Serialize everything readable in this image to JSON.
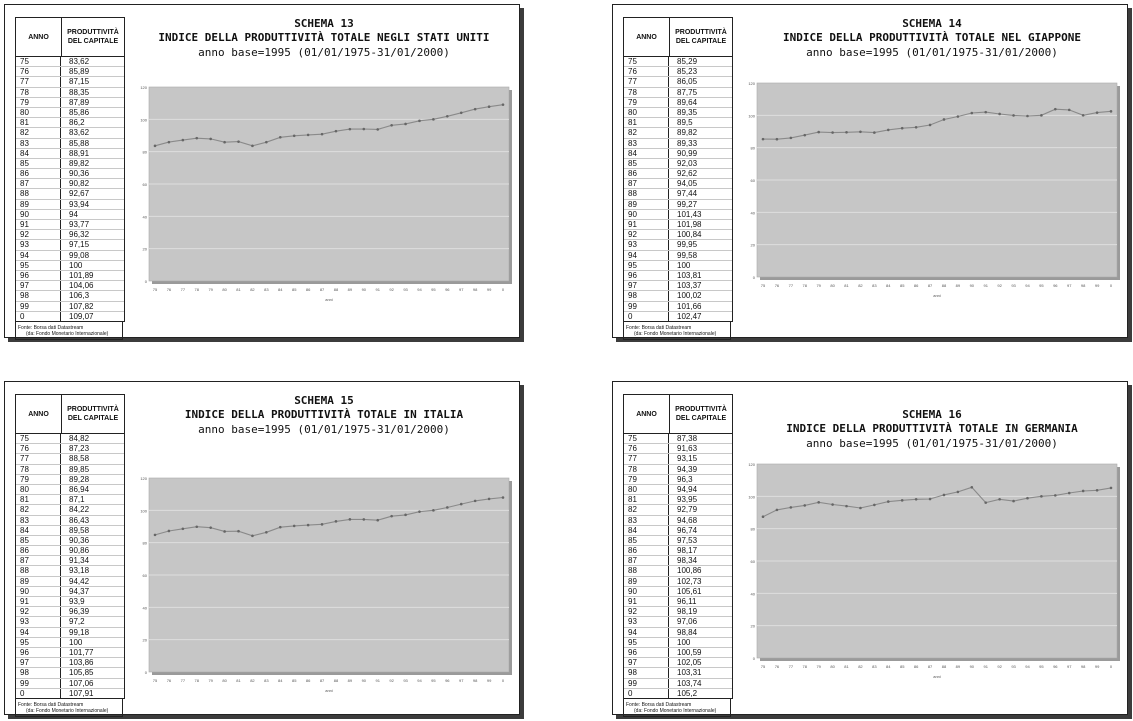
{
  "panels": [
    {
      "schema": "SCHEMA 13",
      "title": "INDICE DELLA PRODUTTIVITÀ TOTALE NEGLI STATI UNITI",
      "subtitle": "anno base=1995 (01/01/1975-31/01/2000)",
      "col_year": "ANNO",
      "col_value": "PRODUTTIVITÀ DEL CAPITALE",
      "source_line1": "Fonte: Borsa dati Datastream",
      "source_line2": "(da: Fondo Monetario Internazionale)",
      "rows": [
        [
          "75",
          "83,62"
        ],
        [
          "76",
          "85,89"
        ],
        [
          "77",
          "87,15"
        ],
        [
          "78",
          "88,35"
        ],
        [
          "79",
          "87,89"
        ],
        [
          "80",
          "85,86"
        ],
        [
          "81",
          "86,2"
        ],
        [
          "82",
          "83,62"
        ],
        [
          "83",
          "85,88"
        ],
        [
          "84",
          "88,91"
        ],
        [
          "85",
          "89,82"
        ],
        [
          "86",
          "90,36"
        ],
        [
          "87",
          "90,82"
        ],
        [
          "88",
          "92,67"
        ],
        [
          "89",
          "93,94"
        ],
        [
          "90",
          "94"
        ],
        [
          "91",
          "93,77"
        ],
        [
          "92",
          "96,32"
        ],
        [
          "93",
          "97,15"
        ],
        [
          "94",
          "99,08"
        ],
        [
          "95",
          "100"
        ],
        [
          "96",
          "101,89"
        ],
        [
          "97",
          "104,06"
        ],
        [
          "98",
          "106,3"
        ],
        [
          "99",
          "107,82"
        ],
        [
          "0",
          "109,07"
        ]
      ]
    },
    {
      "schema": "SCHEMA 14",
      "title": "INDICE DELLA PRODUTTIVITÀ TOTALE NEL GIAPPONE",
      "subtitle": "anno base=1995 (01/01/1975-31/01/2000)",
      "col_year": "ANNO",
      "col_value": "PRODUTTIVITÀ DEL CAPITALE",
      "source_line1": "Fonte: Borsa dati Datastream",
      "source_line2": "(da: Fondo Monetario Internazionale)",
      "rows": [
        [
          "75",
          "85,29"
        ],
        [
          "76",
          "85,23"
        ],
        [
          "77",
          "86,05"
        ],
        [
          "78",
          "87,75"
        ],
        [
          "79",
          "89,64"
        ],
        [
          "80",
          "89,35"
        ],
        [
          "81",
          "89,5"
        ],
        [
          "82",
          "89,82"
        ],
        [
          "83",
          "89,33"
        ],
        [
          "84",
          "90,99"
        ],
        [
          "85",
          "92,03"
        ],
        [
          "86",
          "92,62"
        ],
        [
          "87",
          "94,05"
        ],
        [
          "88",
          "97,44"
        ],
        [
          "89",
          "99,27"
        ],
        [
          "90",
          "101,43"
        ],
        [
          "91",
          "101,98"
        ],
        [
          "92",
          "100,84"
        ],
        [
          "93",
          "99,95"
        ],
        [
          "94",
          "99,58"
        ],
        [
          "95",
          "100"
        ],
        [
          "96",
          "103,81"
        ],
        [
          "97",
          "103,37"
        ],
        [
          "98",
          "100,02"
        ],
        [
          "99",
          "101,66"
        ],
        [
          "0",
          "102,47"
        ]
      ]
    },
    {
      "schema": "SCHEMA 15",
      "title": "INDICE DELLA PRODUTTIVITÀ TOTALE IN ITALIA",
      "subtitle": "anno base=1995 (01/01/1975-31/01/2000)",
      "col_year": "ANNO",
      "col_value": "PRODUTTIVITÀ DEL CAPITALE",
      "source_line1": "Fonte: Borsa dati Datastream",
      "source_line2": "(da: Fondo Monetario Internazionale)",
      "rows": [
        [
          "75",
          "84,82"
        ],
        [
          "76",
          "87,23"
        ],
        [
          "77",
          "88,58"
        ],
        [
          "78",
          "89,85"
        ],
        [
          "79",
          "89,28"
        ],
        [
          "80",
          "86,94"
        ],
        [
          "81",
          "87,1"
        ],
        [
          "82",
          "84,22"
        ],
        [
          "83",
          "86,43"
        ],
        [
          "84",
          "89,58"
        ],
        [
          "85",
          "90,36"
        ],
        [
          "86",
          "90,86"
        ],
        [
          "87",
          "91,34"
        ],
        [
          "88",
          "93,18"
        ],
        [
          "89",
          "94,42"
        ],
        [
          "90",
          "94,37"
        ],
        [
          "91",
          "93,9"
        ],
        [
          "92",
          "96,39"
        ],
        [
          "93",
          "97,2"
        ],
        [
          "94",
          "99,18"
        ],
        [
          "95",
          "100"
        ],
        [
          "96",
          "101,77"
        ],
        [
          "97",
          "103,86"
        ],
        [
          "98",
          "105,85"
        ],
        [
          "99",
          "107,06"
        ],
        [
          "0",
          "107,91"
        ]
      ]
    },
    {
      "schema": "SCHEMA 16",
      "title": "INDICE DELLA PRODUTTIVITÀ TOTALE IN GERMANIA",
      "subtitle": "anno base=1995 (01/01/1975-31/01/2000)",
      "col_year": "ANNO",
      "col_value": "PRODUTTIVITÀ DEL CAPITALE",
      "source_line1": "Fonte: Borsa dati Datastream",
      "source_line2": "(da: Fondo Monetario Internazionale)",
      "rows": [
        [
          "75",
          "87,38"
        ],
        [
          "76",
          "91,63"
        ],
        [
          "77",
          "93,15"
        ],
        [
          "78",
          "94,39"
        ],
        [
          "79",
          "96,3"
        ],
        [
          "80",
          "94,94"
        ],
        [
          "81",
          "93,95"
        ],
        [
          "82",
          "92,79"
        ],
        [
          "83",
          "94,68"
        ],
        [
          "84",
          "96,74"
        ],
        [
          "85",
          "97,53"
        ],
        [
          "86",
          "98,17"
        ],
        [
          "87",
          "98,34"
        ],
        [
          "88",
          "100,86"
        ],
        [
          "89",
          "102,73"
        ],
        [
          "90",
          "105,61"
        ],
        [
          "91",
          "96,11"
        ],
        [
          "92",
          "98,19"
        ],
        [
          "93",
          "97,06"
        ],
        [
          "94",
          "98,84"
        ],
        [
          "95",
          "100"
        ],
        [
          "96",
          "100,59"
        ],
        [
          "97",
          "102,05"
        ],
        [
          "98",
          "103,31"
        ],
        [
          "99",
          "103,74"
        ],
        [
          "0",
          "105,2"
        ]
      ]
    }
  ],
  "chart_data": [
    {
      "type": "line",
      "x": [
        "75",
        "76",
        "77",
        "78",
        "79",
        "80",
        "81",
        "82",
        "83",
        "84",
        "85",
        "86",
        "87",
        "88",
        "89",
        "90",
        "91",
        "92",
        "93",
        "94",
        "95",
        "96",
        "97",
        "98",
        "99",
        "0"
      ],
      "xlabel": "anni",
      "ylabel": "",
      "ylim": [
        0,
        120
      ],
      "yticks": [
        "0",
        "20",
        "40",
        "60",
        "80",
        "100",
        "120"
      ],
      "grid": true,
      "series": [
        {
          "values": [
            83.62,
            85.89,
            87.15,
            88.35,
            87.89,
            85.86,
            86.2,
            83.62,
            85.88,
            88.91,
            89.82,
            90.36,
            90.82,
            92.67,
            93.94,
            94,
            93.77,
            96.32,
            97.15,
            99.08,
            100,
            101.89,
            104.06,
            106.3,
            107.82,
            109.07
          ]
        }
      ],
      "colors": {
        "plot_bg": "#c6c6c6",
        "line": "#8a8a8a",
        "grid": "#dedede"
      }
    },
    {
      "type": "line",
      "x": [
        "75",
        "76",
        "77",
        "78",
        "79",
        "80",
        "81",
        "82",
        "83",
        "84",
        "85",
        "86",
        "87",
        "88",
        "89",
        "90",
        "91",
        "92",
        "93",
        "94",
        "95",
        "96",
        "97",
        "98",
        "99",
        "0"
      ],
      "xlabel": "anni",
      "ylabel": "",
      "ylim": [
        0,
        120
      ],
      "yticks": [
        "0",
        "20",
        "40",
        "60",
        "80",
        "100",
        "120"
      ],
      "grid": true,
      "series": [
        {
          "values": [
            85.29,
            85.23,
            86.05,
            87.75,
            89.64,
            89.35,
            89.5,
            89.82,
            89.33,
            90.99,
            92.03,
            92.62,
            94.05,
            97.44,
            99.27,
            101.43,
            101.98,
            100.84,
            99.95,
            99.58,
            100,
            103.81,
            103.37,
            100.02,
            101.66,
            102.47
          ]
        }
      ],
      "colors": {
        "plot_bg": "#c6c6c6",
        "line": "#8a8a8a",
        "grid": "#dedede"
      }
    },
    {
      "type": "line",
      "x": [
        "75",
        "76",
        "77",
        "78",
        "79",
        "80",
        "81",
        "82",
        "83",
        "84",
        "85",
        "86",
        "87",
        "88",
        "89",
        "90",
        "91",
        "92",
        "93",
        "94",
        "95",
        "96",
        "97",
        "98",
        "99",
        "0"
      ],
      "xlabel": "anni",
      "ylabel": "",
      "ylim": [
        0,
        120
      ],
      "yticks": [
        "0",
        "20",
        "40",
        "60",
        "80",
        "100",
        "120"
      ],
      "grid": true,
      "series": [
        {
          "values": [
            84.82,
            87.23,
            88.58,
            89.85,
            89.28,
            86.94,
            87.1,
            84.22,
            86.43,
            89.58,
            90.36,
            90.86,
            91.34,
            93.18,
            94.42,
            94.37,
            93.9,
            96.39,
            97.2,
            99.18,
            100,
            101.77,
            103.86,
            105.85,
            107.06,
            107.91
          ]
        }
      ],
      "colors": {
        "plot_bg": "#c6c6c6",
        "line": "#8a8a8a",
        "grid": "#dedede"
      }
    },
    {
      "type": "line",
      "x": [
        "75",
        "76",
        "77",
        "78",
        "79",
        "80",
        "81",
        "82",
        "83",
        "84",
        "85",
        "86",
        "87",
        "88",
        "89",
        "90",
        "91",
        "92",
        "93",
        "94",
        "95",
        "96",
        "97",
        "98",
        "99",
        "0"
      ],
      "xlabel": "anni",
      "ylabel": "",
      "ylim": [
        0,
        120
      ],
      "yticks": [
        "0",
        "20",
        "40",
        "60",
        "80",
        "100",
        "120"
      ],
      "grid": true,
      "series": [
        {
          "values": [
            87.38,
            91.63,
            93.15,
            94.39,
            96.3,
            94.94,
            93.95,
            92.79,
            94.68,
            96.74,
            97.53,
            98.17,
            98.34,
            100.86,
            102.73,
            105.61,
            96.11,
            98.19,
            97.06,
            98.84,
            100,
            100.59,
            102.05,
            103.31,
            103.74,
            105.2
          ]
        }
      ],
      "colors": {
        "plot_bg": "#c6c6c6",
        "line": "#8a8a8a",
        "grid": "#dedede"
      }
    }
  ]
}
